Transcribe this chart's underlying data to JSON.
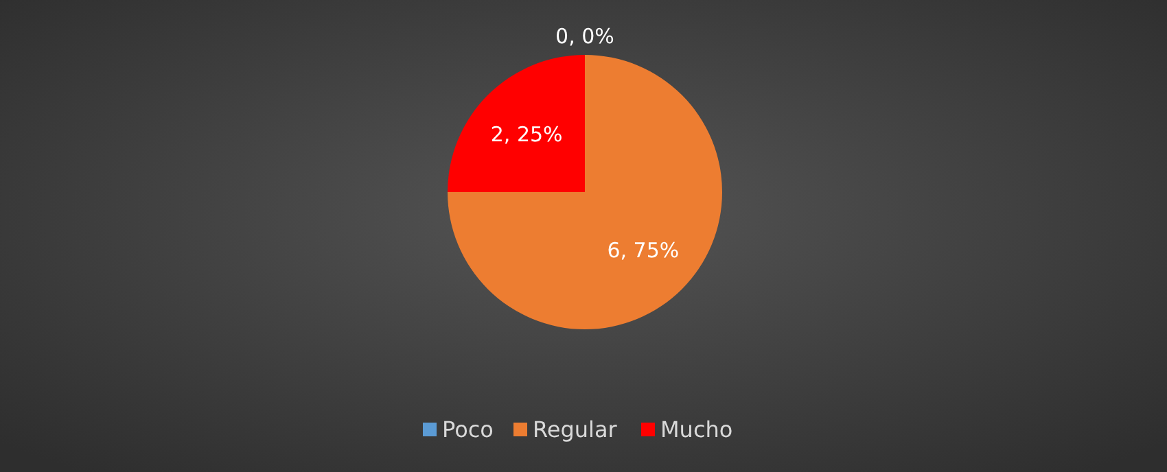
{
  "chart_data": {
    "type": "pie",
    "categories": [
      "Poco",
      "Regular",
      "Mucho"
    ],
    "values": [
      0,
      6,
      2
    ],
    "colors": [
      "#5b9bd5",
      "#ed7d31",
      "#ff0000"
    ],
    "value_labels": [
      "0, 0%",
      "6, 75%",
      "2, 25%"
    ],
    "legend": "bottom"
  }
}
